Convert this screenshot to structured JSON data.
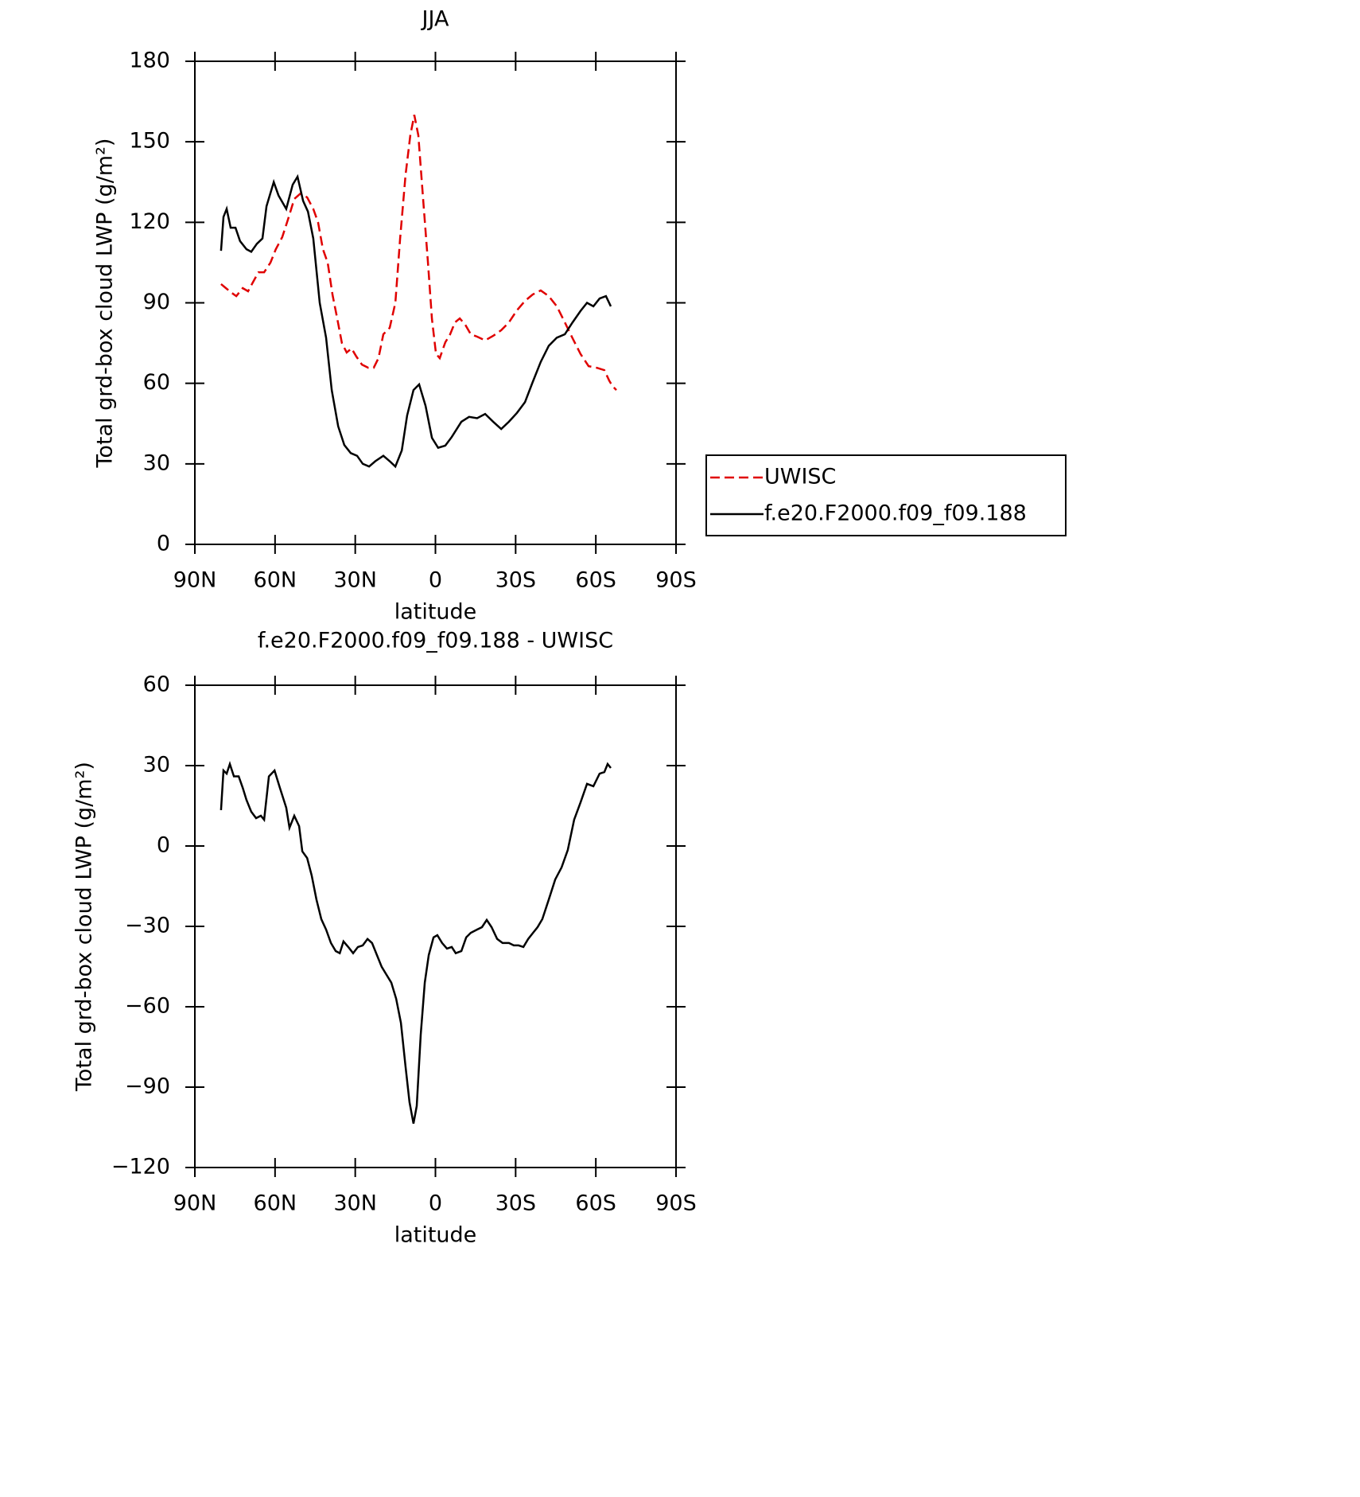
{
  "chart_data": [
    {
      "type": "line",
      "title": "JJA",
      "xlabel": "latitude",
      "ylabel": "Total grd-box cloud LWP (g/m²)",
      "xlim": [
        90,
        -90
      ],
      "xticks": [
        {
          "value": 90,
          "label": "90N"
        },
        {
          "value": 60,
          "label": "60N"
        },
        {
          "value": 30,
          "label": "30N"
        },
        0,
        {
          "value": -30,
          "label": "30S"
        },
        {
          "value": -60,
          "label": "60S"
        },
        {
          "value": -90,
          "label": "90S"
        }
      ],
      "ylim": [
        0,
        180
      ],
      "yticks": [
        0,
        30,
        60,
        90,
        120,
        150,
        180
      ],
      "legend": "right",
      "series": [
        {
          "name": "UWISC",
          "color": "#e00000",
          "line_style": "dashed",
          "x": [
            80.2,
            78.4,
            76.6,
            74.5,
            72.1,
            70.1,
            68.3,
            66.2,
            64.1,
            61.7,
            59.7,
            57.3,
            55.2,
            52.8,
            50.4,
            48.0,
            45.7,
            43.9,
            42.1,
            40.3,
            38.5,
            36.7,
            35.0,
            33.2,
            31.4,
            29.6,
            27.5,
            25.1,
            23.1,
            21.3,
            19.5,
            17.1,
            15.0,
            13.2,
            11.2,
            9.4,
            7.9,
            6.4,
            4.6,
            2.8,
            1.3,
            -0.2,
            -1.6,
            -3.7,
            -5.5,
            -7.3,
            -9.1,
            -11.2,
            -13.2,
            -15.6,
            -18.6,
            -21.6,
            -24.6,
            -27.5,
            -30.5,
            -33.5,
            -36.4,
            -39.4,
            -42.4,
            -45.4,
            -48.4,
            -51.3,
            -54.3,
            -57.3,
            -60.3,
            -63.2,
            -65.0,
            -66.2,
            -67.7
          ],
          "values": [
            97,
            95.5,
            94,
            92.5,
            95.5,
            94.3,
            97.6,
            101.4,
            101.4,
            105,
            110,
            114.5,
            121,
            128.7,
            130.8,
            129.3,
            125,
            120,
            110,
            105,
            93,
            84,
            75,
            71.5,
            73,
            70,
            67,
            65.8,
            65.8,
            69.4,
            78.3,
            80.7,
            90,
            114,
            137.6,
            152.4,
            160,
            152.4,
            128.7,
            105,
            84,
            71,
            69.4,
            75.3,
            78.3,
            82.7,
            84.2,
            81.8,
            78.3,
            77.4,
            76,
            77.7,
            79.8,
            82.7,
            87.2,
            90.7,
            93.1,
            94.6,
            92.5,
            88.7,
            82.7,
            76.8,
            70.9,
            66.4,
            65.8,
            64.9,
            61,
            59,
            57.5
          ]
        },
        {
          "name": "f.e20.F2000.f09_f09.188",
          "color": "#000000",
          "line_style": "solid",
          "x": [
            80.2,
            79.3,
            78.1,
            76.6,
            74.8,
            73.1,
            70.7,
            68.9,
            66.8,
            64.7,
            63.2,
            60.5,
            58.7,
            55.8,
            53.4,
            51.6,
            49.5,
            47.7,
            45.7,
            43.3,
            40.9,
            38.8,
            36.4,
            34.1,
            31.7,
            29.3,
            27.2,
            24.8,
            22.5,
            19.5,
            17.1,
            15.0,
            12.6,
            10.6,
            8.2,
            6.1,
            3.7,
            1.3,
            -1.0,
            -3.7,
            -6.1,
            -9.7,
            -12.6,
            -15.6,
            -18.6,
            -21.6,
            -24.6,
            -27.5,
            -30.5,
            -33.5,
            -36.4,
            -39.4,
            -42.4,
            -45.4,
            -48.4,
            -51.3,
            -54.3,
            -56.7,
            -59.1,
            -61.4,
            -63.8,
            -65.6
          ],
          "values": [
            109.4,
            122,
            125,
            118,
            118,
            113,
            110,
            109,
            112,
            114,
            126,
            135,
            130,
            125,
            134,
            137,
            128,
            124,
            114,
            90,
            77,
            57.5,
            44,
            37,
            34,
            33,
            30,
            29,
            31,
            33,
            31,
            29,
            35,
            48,
            57.5,
            59.6,
            51.6,
            39.7,
            36,
            36.8,
            40,
            45.7,
            47.5,
            47,
            48.6,
            45.7,
            43,
            45.7,
            49,
            53,
            60.5,
            68,
            74,
            77,
            78.3,
            82.7,
            87,
            90,
            88.7,
            91.6,
            92.5,
            88.7
          ]
        }
      ]
    },
    {
      "type": "line",
      "title": "f.e20.F2000.f09_f09.188 - UWISC",
      "xlabel": "latitude",
      "ylabel": "Total grd-box cloud LWP (g/m²)",
      "xlim": [
        90,
        -90
      ],
      "xticks": [
        {
          "value": 90,
          "label": "90N"
        },
        {
          "value": 60,
          "label": "60N"
        },
        {
          "value": 30,
          "label": "30N"
        },
        0,
        {
          "value": -30,
          "label": "30S"
        },
        {
          "value": -60,
          "label": "60S"
        },
        {
          "value": -90,
          "label": "90S"
        }
      ],
      "ylim": [
        -120,
        60
      ],
      "yticks": [
        {
          "value": -120,
          "label": "−120"
        },
        {
          "value": -90,
          "label": "−90"
        },
        {
          "value": -60,
          "label": "−60"
        },
        {
          "value": -30,
          "label": "−30"
        },
        0,
        30,
        60
      ],
      "series": [
        {
          "color": "#000000",
          "line_style": "solid",
          "x": [
            80.2,
            79.3,
            78.1,
            76.9,
            75.4,
            73.6,
            72.1,
            70.7,
            68.9,
            67.1,
            65.3,
            64.1,
            62.3,
            60.2,
            58.2,
            55.8,
            54.6,
            52.8,
            51.0,
            49.8,
            48.0,
            46.3,
            44.5,
            42.7,
            40.9,
            39.1,
            37.3,
            35.8,
            34.4,
            32.6,
            30.8,
            29.0,
            27.2,
            25.4,
            23.7,
            21.9,
            20.1,
            18.3,
            16.5,
            14.7,
            12.9,
            11.2,
            9.7,
            8.2,
            7.0,
            5.5,
            4.0,
            2.5,
            0.7,
            -0.7,
            -2.5,
            -4.3,
            -6.1,
            -7.6,
            -9.7,
            -11.5,
            -13.2,
            -15.6,
            -17.4,
            -19.2,
            -21.0,
            -23.1,
            -25.1,
            -27.5,
            -29.3,
            -31.1,
            -32.9,
            -34.7,
            -36.5,
            -38.2,
            -40.0,
            -42.4,
            -44.8,
            -47.2,
            -49.5,
            -51.9,
            -54.3,
            -56.7,
            -59.1,
            -61.4,
            -63.2,
            -64.4,
            -65.6
          ],
          "values": [
            13.4,
            28.2,
            27,
            30.6,
            26,
            26,
            21.7,
            17.2,
            12.8,
            10.4,
            11.3,
            9.8,
            26,
            28.2,
            21.7,
            14.3,
            6.8,
            11.3,
            7.4,
            -2,
            -4.5,
            -11,
            -20,
            -27.3,
            -31.2,
            -36.2,
            -39.2,
            -40,
            -35.6,
            -37.7,
            -40,
            -37.7,
            -37.1,
            -34.7,
            -36.2,
            -40.7,
            -45.1,
            -48.1,
            -51,
            -57,
            -66,
            -82.3,
            -95.6,
            -103.6,
            -97,
            -70.4,
            -51,
            -40.7,
            -34.1,
            -33.3,
            -36.2,
            -38.3,
            -37.7,
            -40,
            -39.2,
            -34.1,
            -32.4,
            -31.2,
            -30.3,
            -27.6,
            -30.3,
            -34.7,
            -36.2,
            -36.2,
            -37.1,
            -37.1,
            -37.7,
            -34.7,
            -32.4,
            -30.3,
            -27.3,
            -20,
            -12.5,
            -8,
            -1.5,
            9.8,
            16.3,
            23.2,
            22.3,
            27,
            27.6,
            30.6,
            29.1
          ]
        }
      ]
    }
  ]
}
